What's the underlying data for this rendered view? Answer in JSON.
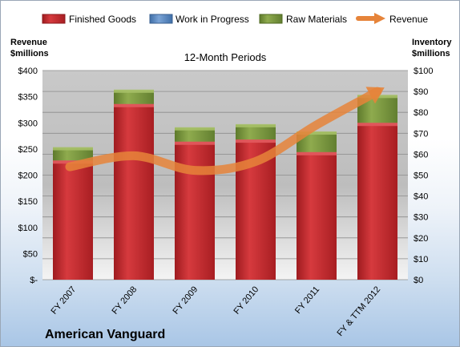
{
  "chart_data": {
    "type": "bar",
    "stacked": true,
    "company": "American Vanguard",
    "subtitle": "12-Month Periods",
    "left_axis_title": [
      "Revenue",
      "$millions"
    ],
    "right_axis_title": [
      "Inventory",
      "$millions"
    ],
    "categories": [
      "FY 2007",
      "FY 2008",
      "FY 2009",
      "FY 2010",
      "FY 2011",
      "FY & TTM 2012"
    ],
    "left_ticks": [
      "$400",
      "$350",
      "$300",
      "$250",
      "$200",
      "$150",
      "$100",
      "$50",
      "$-"
    ],
    "right_ticks": [
      "$100",
      "$90",
      "$80",
      "$70",
      "$60",
      "$50",
      "$40",
      "$30",
      "$20",
      "$10",
      "$0"
    ],
    "left_ylim": [
      0,
      400
    ],
    "right_ylim": [
      0,
      100
    ],
    "series": [
      {
        "name": "Finished Goods",
        "axis": "right",
        "values": [
          57,
          84,
          66,
          67,
          61,
          75
        ]
      },
      {
        "name": "Work in Progress",
        "axis": "right",
        "values": [
          0,
          0,
          0,
          0,
          0,
          0
        ]
      },
      {
        "name": "Raw Materials",
        "axis": "right",
        "values": [
          6,
          6.5,
          6.5,
          7,
          9.5,
          13
        ]
      },
      {
        "name": "Revenue",
        "axis": "left",
        "type": "line",
        "values": [
          216,
          237,
          209,
          226,
          296,
          360
        ]
      }
    ],
    "colors": {
      "finished_goods": "#c4262b",
      "work_in_progress": "#4f81bd",
      "raw_materials": "#77933c",
      "revenue": "#e6843a"
    }
  }
}
